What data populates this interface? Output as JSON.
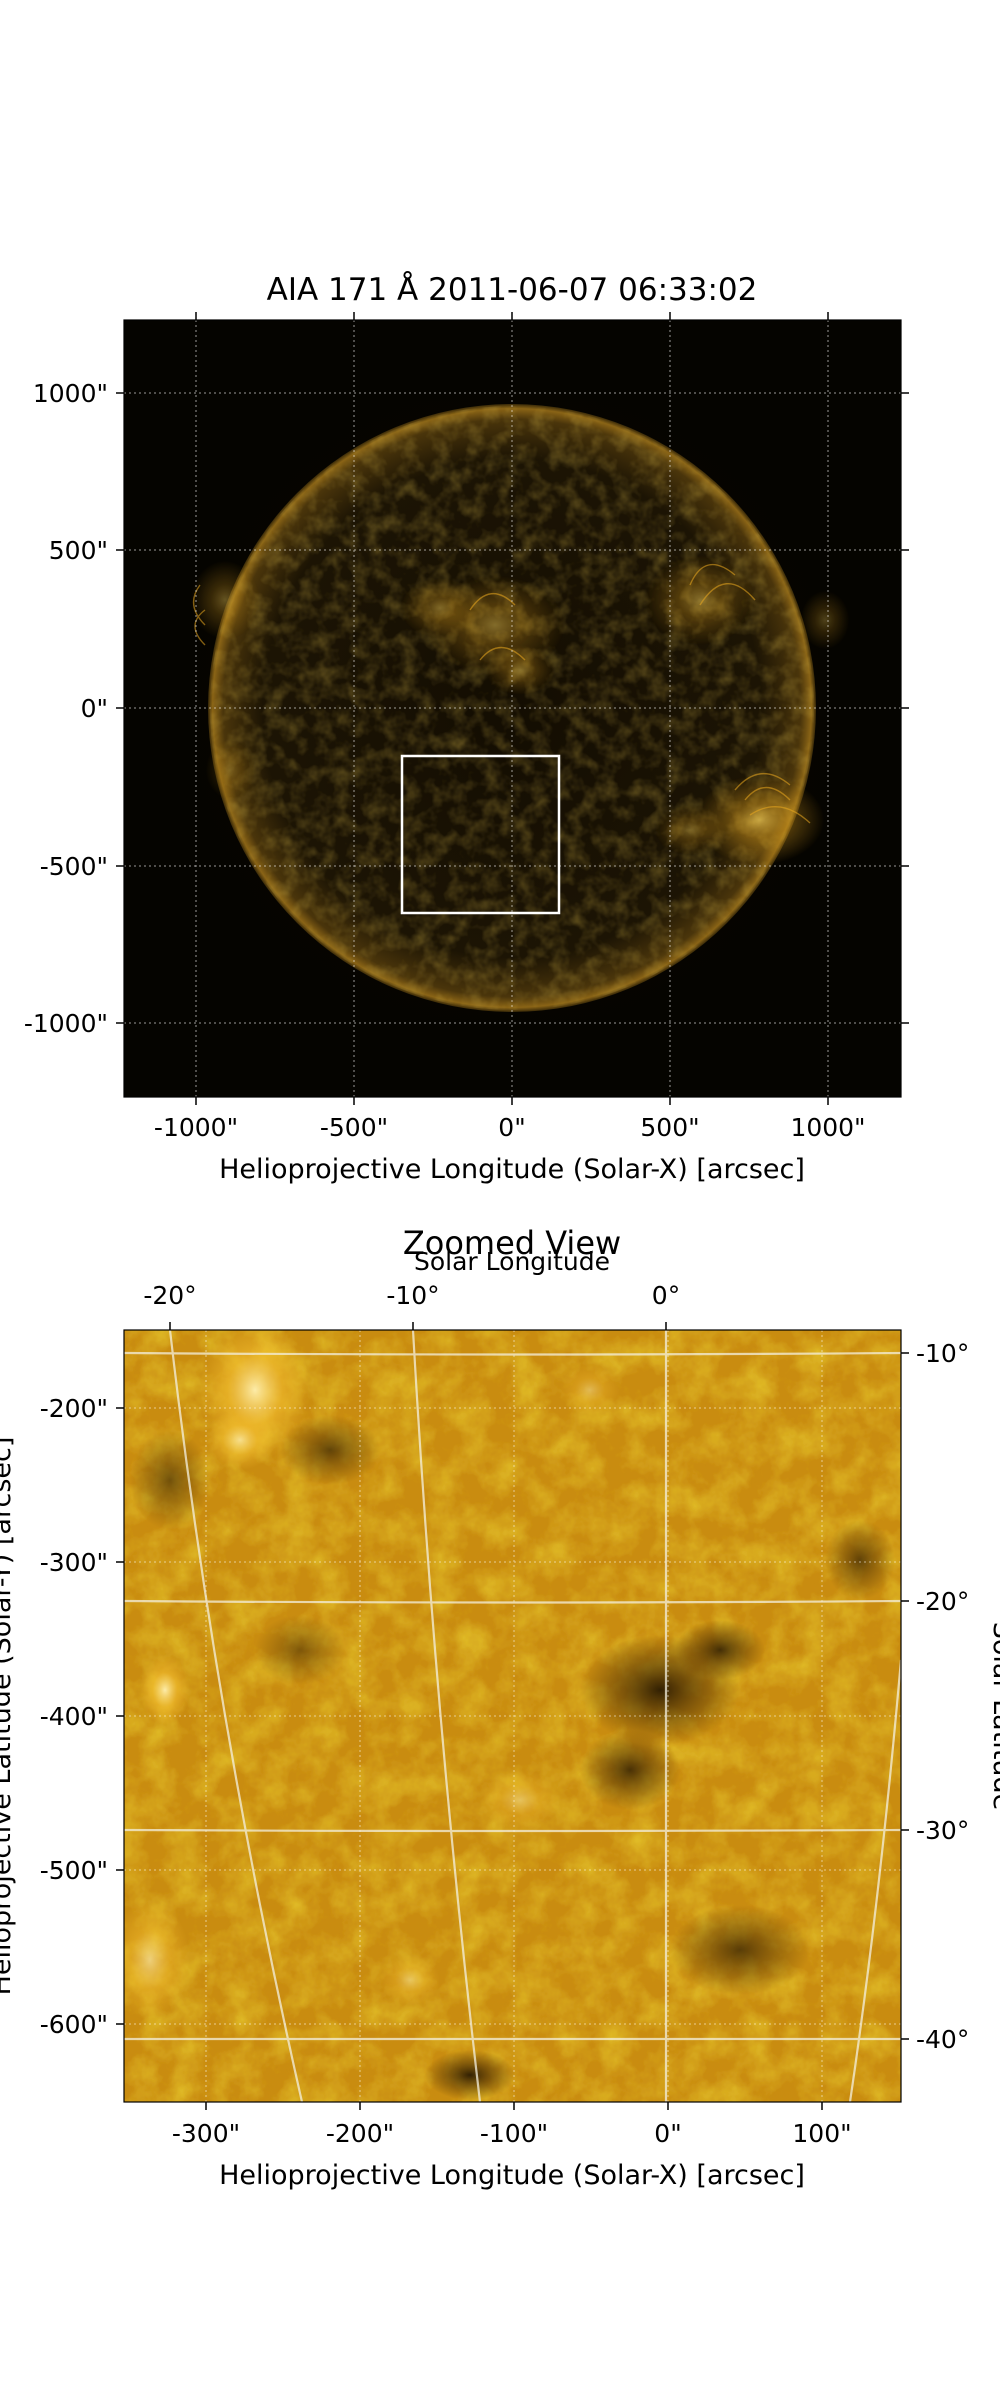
{
  "top_panel": {
    "title": "AIA 171 Å 2011-06-07 06:33:02",
    "xlabel": "Helioprojective Longitude (Solar-X) [arcsec]",
    "x_ticks": [
      "-1000\"",
      "-500\"",
      "0\"",
      "500\"",
      "1000\""
    ],
    "y_ticks": [
      "1000\"",
      "500\"",
      "0\"",
      "-500\"",
      "-1000\""
    ]
  },
  "bottom_panel": {
    "title": "Zoomed View",
    "top_axis_label": "Solar Longitude",
    "ylabel": "Helioprojective Latitude (Solar-Y) [arcsec]",
    "right_axis_label": "Solar Latitude",
    "xlabel": "Helioprojective Longitude (Solar-X) [arcsec]",
    "x_ticks": [
      "-300\"",
      "-200\"",
      "-100\"",
      "0\"",
      "100\""
    ],
    "y_ticks": [
      "-200\"",
      "-300\"",
      "-400\"",
      "-500\"",
      "-600\""
    ],
    "lon_ticks": [
      "-20°",
      "-10°",
      "0°"
    ],
    "lat_ticks": [
      "-10°",
      "-20°",
      "-30°",
      "-40°"
    ]
  },
  "colors": {
    "background_dark": "#050400",
    "disk_dark": "#1a1204",
    "limb": "#8a6416",
    "corona": "#e9a820",
    "zoom_base": "#c98c10",
    "zoom_bright": "#f5c030",
    "zoom_dark": "#3a2604",
    "box_outline": "#ffffff",
    "grid": "#ffffff"
  }
}
